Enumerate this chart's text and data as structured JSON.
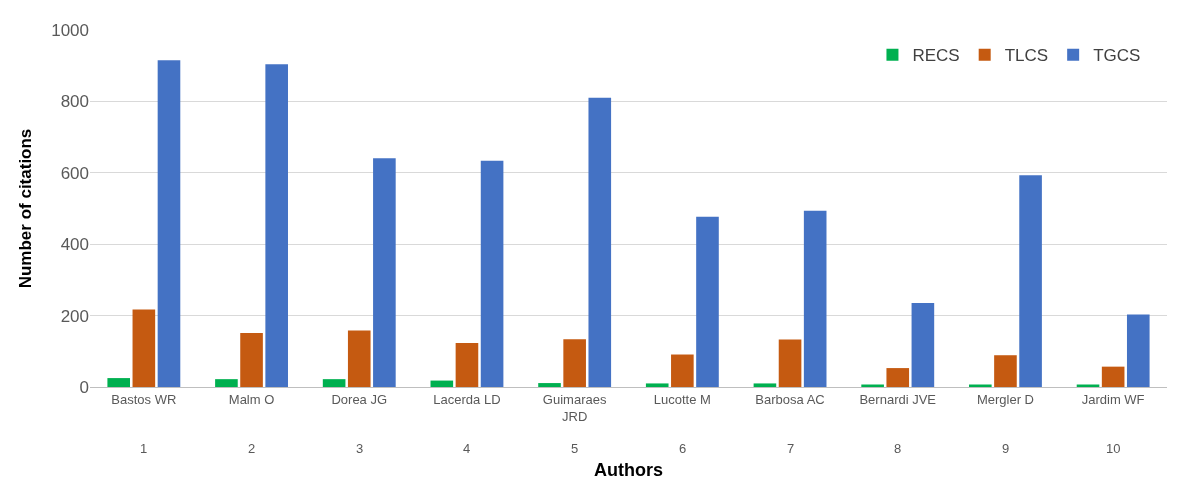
{
  "chart_data": {
    "type": "bar",
    "xlabel": "Authors",
    "ylabel": "Number of citations",
    "categories": [
      "Bastos WR",
      "Malm O",
      "Dorea JG",
      "Lacerda LD",
      "Guimaraes JRD",
      "Lucotte M",
      "Barbosa AC",
      "Bernardi JVE",
      "Mergler D",
      "Jardim WF"
    ],
    "series": [
      {
        "name": "RECS",
        "color": "#00b050",
        "values": [
          25,
          22,
          22,
          18,
          11,
          10,
          10,
          7,
          7,
          7
        ]
      },
      {
        "name": "TLCS",
        "color": "#c55a11",
        "values": [
          217,
          151,
          158,
          123,
          134,
          91,
          133,
          53,
          89,
          57
        ]
      },
      {
        "name": "TGCS",
        "color": "#4472c4",
        "values": [
          915,
          904,
          641,
          634,
          810,
          477,
          494,
          235,
          593,
          203
        ]
      }
    ],
    "annotations": [
      "1",
      "2",
      "3",
      "4",
      "5",
      "6",
      "7",
      "8",
      "9",
      "10"
    ],
    "ylim": [
      0,
      1000
    ],
    "yticks": [
      0,
      200,
      400,
      600,
      800,
      1000
    ],
    "grid": "y",
    "legend": "top right"
  }
}
